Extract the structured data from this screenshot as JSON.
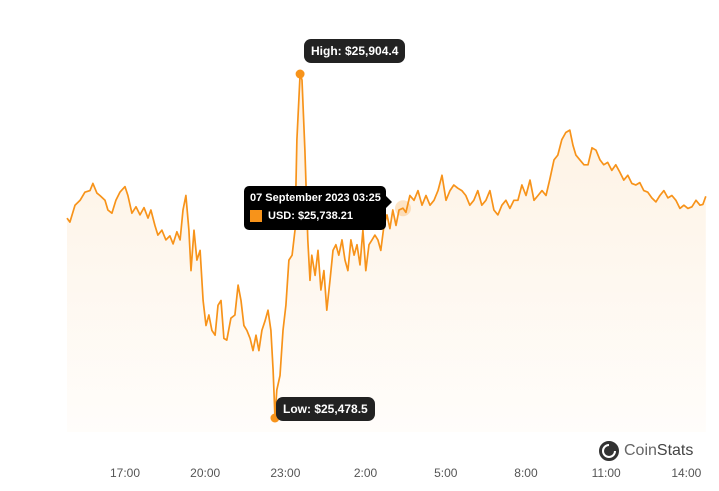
{
  "chart_data": {
    "type": "area",
    "title": "",
    "xlabel": "",
    "ylabel": "",
    "x_unit": "hours since 17:00",
    "x_ticks": [
      {
        "t": 0,
        "label": "17:00"
      },
      {
        "t": 3,
        "label": "20:00"
      },
      {
        "t": 6,
        "label": "23:00"
      },
      {
        "t": 9,
        "label": "2:00"
      },
      {
        "t": 12,
        "label": "5:00"
      },
      {
        "t": 15,
        "label": "8:00"
      },
      {
        "t": 18,
        "label": "11:00"
      },
      {
        "t": 21,
        "label": "14:00"
      }
    ],
    "grid": false,
    "color": "#f7931a",
    "high": {
      "t": 6.55,
      "value": 25904.4,
      "label": "High: $25,904.4"
    },
    "low": {
      "t": 5.61,
      "value": 25478.5,
      "label": "Low: $25,478.5"
    },
    "tooltip": {
      "t": 10.4,
      "date": "07 September 2023 03:25",
      "value_label": "USD: $25,738.21",
      "value": 25738.21
    },
    "series": [
      {
        "name": "USD",
        "points": [
          [
            -2.17,
            25726
          ],
          [
            -2.06,
            25721
          ],
          [
            -1.87,
            25742
          ],
          [
            -1.68,
            25748
          ],
          [
            -1.5,
            25758
          ],
          [
            -1.31,
            25760
          ],
          [
            -1.2,
            25769
          ],
          [
            -1.05,
            25757
          ],
          [
            -0.94,
            25754
          ],
          [
            -0.75,
            25748
          ],
          [
            -0.64,
            25736
          ],
          [
            -0.49,
            25732
          ],
          [
            -0.34,
            25748
          ],
          [
            -0.19,
            25758
          ],
          [
            0,
            25765
          ],
          [
            0.11,
            25754
          ],
          [
            0.26,
            25732
          ],
          [
            0.41,
            25740
          ],
          [
            0.56,
            25730
          ],
          [
            0.71,
            25739
          ],
          [
            0.86,
            25726
          ],
          [
            0.97,
            25736
          ],
          [
            1.12,
            25717
          ],
          [
            1.23,
            25705
          ],
          [
            1.38,
            25711
          ],
          [
            1.53,
            25699
          ],
          [
            1.68,
            25704
          ],
          [
            1.8,
            25694
          ],
          [
            1.94,
            25709
          ],
          [
            2.06,
            25699
          ],
          [
            2.17,
            25736
          ],
          [
            2.28,
            25754
          ],
          [
            2.39,
            25711
          ],
          [
            2.47,
            25661
          ],
          [
            2.58,
            25711
          ],
          [
            2.69,
            25674
          ],
          [
            2.81,
            25686
          ],
          [
            2.92,
            25624
          ],
          [
            3.03,
            25593
          ],
          [
            3.14,
            25606
          ],
          [
            3.25,
            25587
          ],
          [
            3.37,
            25581
          ],
          [
            3.48,
            25618
          ],
          [
            3.59,
            25624
          ],
          [
            3.7,
            25577
          ],
          [
            3.81,
            25575
          ],
          [
            3.96,
            25602
          ],
          [
            4.11,
            25606
          ],
          [
            4.23,
            25643
          ],
          [
            4.34,
            25624
          ],
          [
            4.45,
            25593
          ],
          [
            4.56,
            25587
          ],
          [
            4.68,
            25577
          ],
          [
            4.79,
            25562
          ],
          [
            4.9,
            25581
          ],
          [
            5.01,
            25562
          ],
          [
            5.12,
            25587
          ],
          [
            5.24,
            25599
          ],
          [
            5.35,
            25612
          ],
          [
            5.46,
            25587
          ],
          [
            5.54,
            25538
          ],
          [
            5.61,
            25478.5
          ],
          [
            5.68,
            25513
          ],
          [
            5.8,
            25531
          ],
          [
            5.91,
            25587
          ],
          [
            6.02,
            25618
          ],
          [
            6.13,
            25674
          ],
          [
            6.25,
            25680
          ],
          [
            6.36,
            25711
          ],
          [
            6.43,
            25823
          ],
          [
            6.55,
            25904.4
          ],
          [
            6.62,
            25897
          ],
          [
            6.73,
            25810
          ],
          [
            6.84,
            25699
          ],
          [
            6.92,
            25649
          ],
          [
            6.99,
            25680
          ],
          [
            7.11,
            25655
          ],
          [
            7.22,
            25686
          ],
          [
            7.33,
            25637
          ],
          [
            7.44,
            25661
          ],
          [
            7.55,
            25612
          ],
          [
            7.67,
            25649
          ],
          [
            7.78,
            25686
          ],
          [
            7.89,
            25693
          ],
          [
            8,
            25680
          ],
          [
            8.12,
            25699
          ],
          [
            8.23,
            25674
          ],
          [
            8.34,
            25661
          ],
          [
            8.45,
            25699
          ],
          [
            8.57,
            25680
          ],
          [
            8.68,
            25693
          ],
          [
            8.79,
            25668
          ],
          [
            8.9,
            25711
          ],
          [
            9.01,
            25661
          ],
          [
            9.13,
            25693
          ],
          [
            9.24,
            25699
          ],
          [
            9.35,
            25705
          ],
          [
            9.46,
            25699
          ],
          [
            9.57,
            25686
          ],
          [
            9.69,
            25717
          ],
          [
            9.8,
            25730
          ],
          [
            9.91,
            25713
          ],
          [
            10.02,
            25736
          ],
          [
            10.14,
            25717
          ],
          [
            10.25,
            25736
          ],
          [
            10.4,
            25738.21
          ],
          [
            10.51,
            25733
          ],
          [
            10.66,
            25754
          ],
          [
            10.81,
            25748
          ],
          [
            10.96,
            25760
          ],
          [
            11.11,
            25742
          ],
          [
            11.26,
            25754
          ],
          [
            11.41,
            25742
          ],
          [
            11.56,
            25748
          ],
          [
            11.71,
            25760
          ],
          [
            11.86,
            25779
          ],
          [
            12.01,
            25748
          ],
          [
            12.16,
            25760
          ],
          [
            12.3,
            25767
          ],
          [
            12.45,
            25763
          ],
          [
            12.6,
            25760
          ],
          [
            12.75,
            25754
          ],
          [
            12.9,
            25742
          ],
          [
            13.05,
            25748
          ],
          [
            13.2,
            25760
          ],
          [
            13.35,
            25742
          ],
          [
            13.5,
            25748
          ],
          [
            13.65,
            25760
          ],
          [
            13.8,
            25736
          ],
          [
            13.95,
            25730
          ],
          [
            14.1,
            25742
          ],
          [
            14.25,
            25748
          ],
          [
            14.4,
            25738
          ],
          [
            14.55,
            25748
          ],
          [
            14.7,
            25748
          ],
          [
            14.85,
            25767
          ],
          [
            15,
            25754
          ],
          [
            15.15,
            25773
          ],
          [
            15.3,
            25748
          ],
          [
            15.45,
            25754
          ],
          [
            15.6,
            25760
          ],
          [
            15.75,
            25754
          ],
          [
            15.9,
            25775
          ],
          [
            16.05,
            25798
          ],
          [
            16.19,
            25804
          ],
          [
            16.34,
            25823
          ],
          [
            16.49,
            25832
          ],
          [
            16.64,
            25835
          ],
          [
            16.76,
            25816
          ],
          [
            16.87,
            25804
          ],
          [
            17.02,
            25798
          ],
          [
            17.17,
            25792
          ],
          [
            17.32,
            25792
          ],
          [
            17.47,
            25813
          ],
          [
            17.62,
            25810
          ],
          [
            17.77,
            25798
          ],
          [
            17.91,
            25792
          ],
          [
            18.06,
            25795
          ],
          [
            18.21,
            25785
          ],
          [
            18.36,
            25792
          ],
          [
            18.51,
            25783
          ],
          [
            18.66,
            25773
          ],
          [
            18.81,
            25779
          ],
          [
            18.96,
            25769
          ],
          [
            19.11,
            25767
          ],
          [
            19.26,
            25770
          ],
          [
            19.41,
            25760
          ],
          [
            19.56,
            25758
          ],
          [
            19.71,
            25751
          ],
          [
            19.86,
            25746
          ],
          [
            20.01,
            25754
          ],
          [
            20.16,
            25760
          ],
          [
            20.31,
            25751
          ],
          [
            20.46,
            25754
          ],
          [
            20.61,
            25748
          ],
          [
            20.76,
            25738
          ],
          [
            20.91,
            25742
          ],
          [
            21.06,
            25738
          ],
          [
            21.21,
            25740
          ],
          [
            21.36,
            25748
          ],
          [
            21.51,
            25742
          ],
          [
            21.62,
            25743
          ],
          [
            21.73,
            25753
          ]
        ]
      }
    ]
  },
  "brand": {
    "name_light": "Coin",
    "name_bold": "Stats",
    "icon": "coinstats-logo-icon"
  }
}
